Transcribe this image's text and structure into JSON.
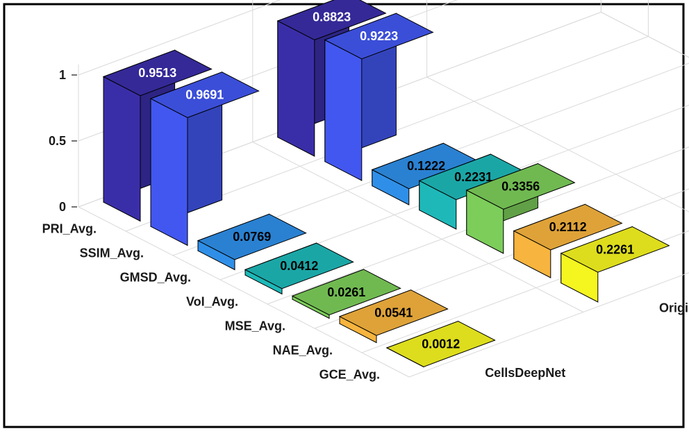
{
  "chart_data": {
    "type": "bar3d",
    "title": "",
    "categories": [
      "PRI_Avg.",
      "SSIM_Avg.",
      "GMSD_Avg.",
      "VoI_Avg.",
      "MSE_Avg.",
      "NAE_Avg.",
      "GCE_Avg."
    ],
    "series": [
      {
        "name": "CellsDeepNet",
        "values": [
          0.9513,
          0.9691,
          0.0769,
          0.0412,
          0.0261,
          0.0541,
          0.0012
        ]
      },
      {
        "name": "Original_Unet",
        "values": [
          0.8823,
          0.9223,
          0.1222,
          0.2231,
          0.3356,
          0.2112,
          0.2261
        ]
      }
    ],
    "value_labels": [
      [
        "0.9513",
        "0.9691",
        "0.0769",
        "0.0412",
        "0.0261",
        "0.0541",
        "0.0012"
      ],
      [
        "0.8823",
        "0.9223",
        "0.1222",
        "0.2231",
        "0.3356",
        "0.2112",
        "0.2261"
      ]
    ],
    "zlim": [
      0,
      1
    ],
    "zticks": [
      "0",
      "0.5",
      "1"
    ],
    "colors": [
      "#3a2ea8",
      "#4257f0",
      "#2f8fe8",
      "#1eb8b8",
      "#7ccd5a",
      "#f7b43e",
      "#f5f520"
    ],
    "label_colors": [
      "#ffffff",
      "#ffffff",
      "#000000",
      "#000000",
      "#000000",
      "#000000",
      "#000000"
    ],
    "grid": true
  }
}
